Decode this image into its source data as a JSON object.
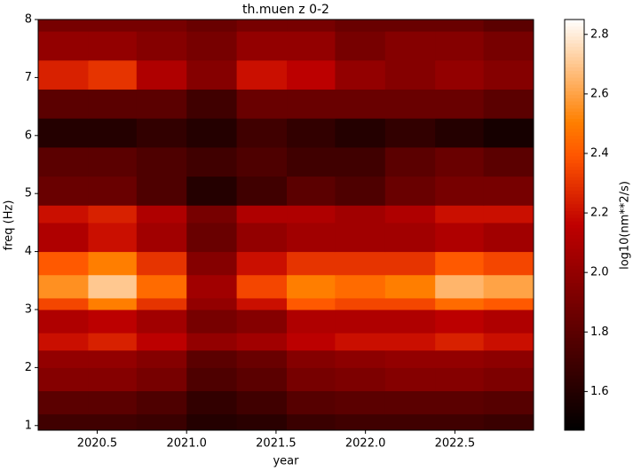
{
  "chart_data": {
    "type": "heatmap",
    "title": "th.muen z 0-2",
    "x_label": "year",
    "y_label": "freq (Hz)",
    "colorbar_label": "log10(nm**2/s)",
    "colormap": "gist_heat",
    "x_edges": [
      2020.17,
      2020.45,
      2020.72,
      2021.0,
      2021.28,
      2021.56,
      2021.83,
      2022.11,
      2022.39,
      2022.66,
      2022.94
    ],
    "y_edges": [
      0.92,
      1.2,
      1.6,
      2.0,
      2.3,
      2.6,
      3.0,
      3.2,
      3.6,
      4.0,
      4.5,
      4.8,
      5.3,
      5.8,
      6.3,
      6.8,
      7.3,
      7.8,
      8.0
    ],
    "z": [
      [
        1.7,
        1.7,
        1.68,
        1.6,
        1.62,
        1.68,
        1.7,
        1.7,
        1.7,
        1.68
      ],
      [
        1.8,
        1.8,
        1.75,
        1.65,
        1.7,
        1.78,
        1.8,
        1.8,
        1.8,
        1.78
      ],
      [
        1.95,
        1.95,
        1.9,
        1.75,
        1.8,
        1.9,
        1.92,
        1.95,
        1.95,
        1.92
      ],
      [
        2.0,
        2.0,
        1.95,
        1.8,
        1.85,
        1.95,
        1.98,
        2.0,
        2.0,
        1.98
      ],
      [
        2.2,
        2.25,
        2.15,
        2.0,
        2.05,
        2.15,
        2.2,
        2.2,
        2.25,
        2.2
      ],
      [
        2.1,
        2.15,
        2.05,
        1.9,
        1.95,
        2.1,
        2.1,
        2.1,
        2.15,
        2.1
      ],
      [
        2.35,
        2.5,
        2.3,
        2.0,
        2.2,
        2.4,
        2.35,
        2.35,
        2.45,
        2.4
      ],
      [
        2.55,
        2.7,
        2.45,
        2.05,
        2.35,
        2.5,
        2.45,
        2.5,
        2.65,
        2.6
      ],
      [
        2.4,
        2.5,
        2.3,
        1.95,
        2.2,
        2.3,
        2.3,
        2.3,
        2.4,
        2.35
      ],
      [
        2.1,
        2.2,
        2.05,
        1.85,
        2.0,
        2.05,
        2.05,
        2.05,
        2.1,
        2.05
      ],
      [
        2.2,
        2.25,
        2.1,
        1.9,
        2.1,
        2.1,
        2.05,
        2.1,
        2.2,
        2.2
      ],
      [
        1.85,
        1.85,
        1.75,
        1.6,
        1.7,
        1.8,
        1.75,
        1.85,
        1.9,
        1.9
      ],
      [
        1.8,
        1.8,
        1.75,
        1.7,
        1.75,
        1.7,
        1.7,
        1.8,
        1.85,
        1.8
      ],
      [
        1.6,
        1.6,
        1.65,
        1.6,
        1.7,
        1.65,
        1.6,
        1.65,
        1.6,
        1.55
      ],
      [
        1.8,
        1.8,
        1.8,
        1.7,
        1.85,
        1.85,
        1.85,
        1.85,
        1.85,
        1.8
      ],
      [
        2.25,
        2.3,
        2.1,
        1.95,
        2.2,
        2.15,
        2.0,
        1.95,
        2.0,
        1.95
      ],
      [
        2.0,
        2.0,
        1.95,
        1.9,
        2.0,
        2.0,
        1.9,
        1.95,
        1.95,
        1.9
      ],
      [
        1.9,
        1.9,
        1.9,
        1.85,
        1.9,
        1.9,
        1.85,
        1.85,
        1.85,
        1.8
      ]
    ],
    "xlim": [
      2020.17,
      2022.94
    ],
    "ylim": [
      0.92,
      8.0
    ],
    "clim": [
      1.47,
      2.85
    ],
    "xticks": [
      2020.5,
      {
        "value": 2021,
        "label": "2021.0"
      },
      2021.5,
      {
        "value": 2022,
        "label": "2022.0"
      },
      2022.5
    ],
    "yticks": [
      1,
      2,
      3,
      4,
      5,
      6,
      7,
      8
    ],
    "cticks": [
      1.6,
      1.8,
      {
        "value": 2,
        "label": "2.0"
      },
      2.2,
      2.4,
      2.6,
      2.8
    ]
  }
}
